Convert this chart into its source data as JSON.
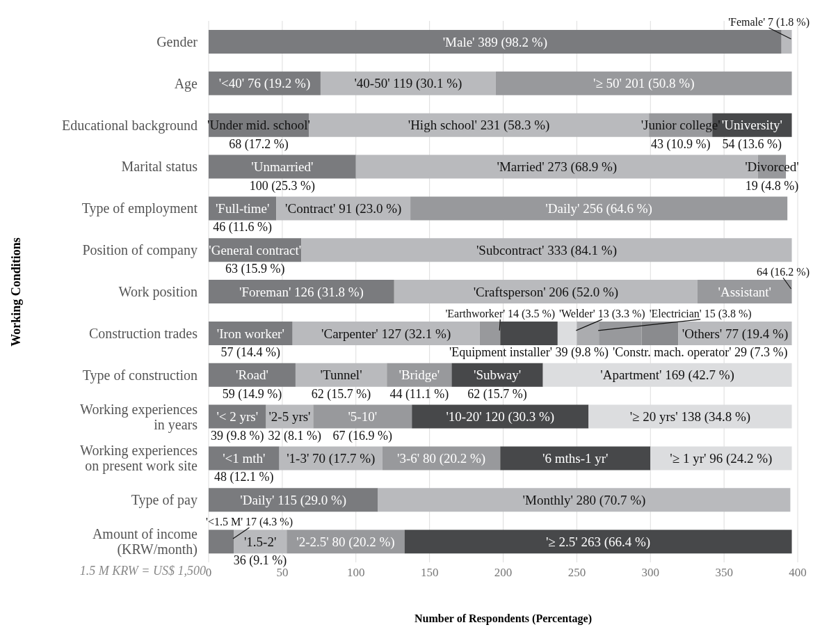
{
  "chart_data": {
    "type": "bar",
    "orientation": "horizontal",
    "stacked": true,
    "xlabel": "Number of Respondents (Percentage)",
    "ylabel": "Working Conditions",
    "grid": "x",
    "categories": [
      "Gender",
      "Age",
      "Educational background",
      "Marital status",
      "Type of employment",
      "Position of company",
      "Work position",
      "Construction trades",
      "Type of construction",
      "Working experiences\nin years",
      "Working experiences\non present work site",
      "Type of pay",
      "Amount of income\n(KRW/month)"
    ],
    "xlim": [
      0,
      400
    ],
    "xticks": [
      0,
      50,
      100,
      150,
      200,
      250,
      300,
      350,
      400
    ],
    "series": [
      {
        "values": [
          389,
          76,
          68,
          100,
          46,
          63,
          126,
          57,
          59,
          39,
          48,
          115,
          17
        ],
        "colors": [
          "#7a7b7e",
          "#7a7b7e",
          "#7a7b7e",
          "#7a7b7e",
          "#7a7b7e",
          "#7a7b7e",
          "#7a7b7e",
          "#7a7b7e",
          "#7a7b7e",
          "#7a7b7e",
          "#7a7b7e",
          "#7a7b7e",
          "#7a7b7e"
        ],
        "value_labels": [
          "'Male' 389 (98.2 %)",
          "'<40' 76 (19.2 %)",
          "'Under mid. school'\n68 (17.2 %)",
          "'Unmarried'\n100 (25.3 %)",
          "'Full-time'\n46 (11.6 %)",
          "'General contract'\n63 (15.9 %)",
          "'Foreman' 126 (31.8 %)",
          "'Iron worker'\n57 (14.4 %)",
          "'Road'\n59 (14.9 %)",
          "'< 2 yrs'\n39 (9.8 %)",
          "'<1 mth'\n48 (12.1 %)",
          "'Daily' 115 (29.0 %)",
          null
        ]
      },
      {
        "values": [
          7,
          119,
          231,
          273,
          91,
          333,
          206,
          127,
          62,
          32,
          70,
          280,
          36
        ],
        "colors": [
          "#b9babd",
          "#b9babd",
          "#b9babd",
          "#b9babd",
          "#b9babd",
          "#b9babd",
          "#b9babd",
          "#b9babd",
          "#b9babd",
          "#b9babd",
          "#b9babd",
          "#b9babd",
          "#b9babd"
        ],
        "value_labels": [
          null,
          "'40-50' 119 (30.1 %)",
          "'High school' 231 (58.3 %)",
          "'Married' 273 (68.9 %)",
          "'Contract' 91 (23.0 %)",
          "'Subcontract' 333 (84.1 %)",
          "'Craftsperson' 206 (52.0 %)",
          "'Carpenter' 127 (32.1 %)",
          "'Tunnel'\n62 (15.7 %)",
          "'2-5 yrs'\n32 (8.1 %)",
          "'1-3' 70 (17.7 %)",
          "'Monthly' 280 (70.7 %)",
          "'1.5-2'\n36 (9.1 %)"
        ]
      },
      {
        "values": [
          null,
          201,
          43,
          19,
          256,
          null,
          64,
          14,
          44,
          67,
          80,
          null,
          80
        ],
        "colors": [
          null,
          "#98999c",
          "#98999c",
          "#98999c",
          "#98999c",
          null,
          "#98999c",
          "#98999c",
          "#98999c",
          "#98999c",
          "#98999c",
          null,
          "#98999c"
        ],
        "value_labels": [
          null,
          "'≥ 50' 201 (50.8 %)",
          "'Junior college'\n43 (10.9 %)",
          "'Divorced'\n19 (4.8 %)",
          "'Daily' 256 (64.6 %)",
          null,
          "'Assistant'",
          null,
          "'Bridge'\n44 (11.1 %)",
          "'5-10'\n67 (16.9 %)",
          "'3-6' 80 (20.2 %)",
          null,
          "'2-2.5' 80 (20.2 %)"
        ]
      },
      {
        "values": [
          null,
          null,
          54,
          null,
          null,
          null,
          null,
          39,
          62,
          120,
          102,
          null,
          263
        ],
        "colors": [
          null,
          null,
          "#47484a",
          null,
          null,
          null,
          null,
          "#47484a",
          "#47484a",
          "#47484a",
          "#47484a",
          null,
          "#47484a"
        ],
        "value_labels": [
          null,
          null,
          "'University'\n54 (13.6 %)",
          null,
          null,
          null,
          null,
          "\n'Equipment installer' 39 (9.8 %)",
          "'Subway'\n62 (15.7 %)",
          "'10-20' 120 (30.3 %)",
          "'6 mths-1 yr'",
          null,
          "'≥ 2.5' 263 (66.4 %)"
        ]
      },
      {
        "values": [
          null,
          null,
          null,
          null,
          null,
          null,
          null,
          13,
          169,
          138,
          96,
          null,
          null
        ],
        "colors": [
          null,
          null,
          null,
          null,
          null,
          null,
          null,
          "#dcdddf",
          "#dcdddf",
          "#dcdddf",
          "#dcdddf",
          null,
          null
        ],
        "value_labels": [
          null,
          null,
          null,
          null,
          null,
          null,
          null,
          null,
          "'Apartment' 169 (42.7 %)",
          "'≥ 20 yrs' 138 (34.8 %)",
          "'≥ 1 yr' 96 (24.2 %)",
          null,
          null
        ]
      },
      {
        "values": [
          null,
          null,
          null,
          null,
          null,
          null,
          null,
          15,
          null,
          null,
          null,
          null,
          null
        ],
        "colors": [
          null,
          null,
          null,
          null,
          null,
          null,
          null,
          "#abacaf",
          null,
          null,
          null,
          null,
          null
        ]
      },
      {
        "values": [
          null,
          null,
          null,
          null,
          null,
          null,
          null,
          29,
          null,
          null,
          null,
          null,
          null
        ],
        "colors": [
          null,
          null,
          null,
          null,
          null,
          null,
          null,
          "#98999c",
          null,
          null,
          null,
          null,
          null
        ],
        "value_labels": [
          null,
          null,
          null,
          null,
          null,
          null,
          null,
          "\n'Constr. mach. operator' 29 (7.3 %)",
          null,
          null,
          null,
          null,
          null
        ]
      },
      {
        "values": [
          null,
          null,
          null,
          null,
          null,
          null,
          null,
          25,
          null,
          null,
          null,
          null,
          null
        ],
        "colors": [
          null,
          null,
          null,
          null,
          null,
          null,
          null,
          "#8a8b8e",
          null,
          null,
          null,
          null,
          null
        ]
      },
      {
        "values": [
          null,
          null,
          null,
          null,
          null,
          null,
          null,
          77,
          null,
          null,
          null,
          null,
          null
        ],
        "colors": [
          null,
          null,
          null,
          null,
          null,
          null,
          null,
          "#b9babd",
          null,
          null,
          null,
          null,
          null
        ],
        "value_labels": [
          null,
          null,
          null,
          null,
          null,
          null,
          null,
          "'Others' 77 (19.4 %)",
          null,
          null,
          null,
          null,
          null
        ]
      }
    ],
    "annotations": [
      "1.5 M KRW = US$ 1,500",
      {
        "text": "'Female' 7 (1.8 %)",
        "x": 396,
        "y": "Gender"
      },
      {
        "text": "64 (16.2 %)",
        "x": 396,
        "y": "Work position"
      },
      {
        "text": "'Earthworker' 14 (3.5 %)",
        "x": 198,
        "y": "Construction trades"
      },
      {
        "text": "'Welder' 13 (3.3 %)",
        "x": 250,
        "y": "Construction trades"
      },
      {
        "text": "'Electrician' 15 (3.8 %)",
        "x": 265,
        "y": "Construction trades"
      },
      {
        "text": "'<1.5 M' 17 (4.3 %)",
        "x": 17,
        "y": "Amount of income\n(KRW/month)"
      }
    ]
  }
}
